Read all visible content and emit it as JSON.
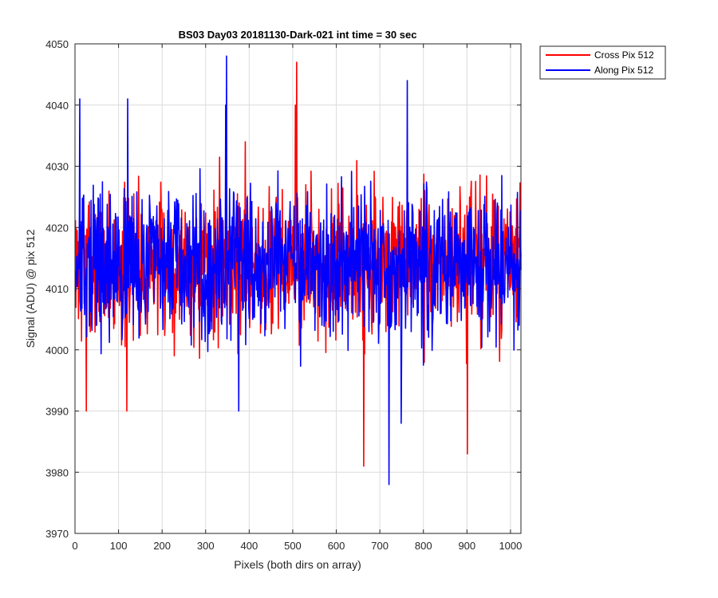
{
  "chart_data": {
    "type": "line",
    "title": "BS03 Day03 20181130-Dark-021 int time = 30 sec",
    "xlabel": "Pixels (both dirs on array)",
    "ylabel": "Signal (ADU) @ pix 512",
    "xlim": [
      0,
      1024
    ],
    "ylim": [
      3970,
      4050
    ],
    "xticks": [
      0,
      100,
      200,
      300,
      400,
      500,
      600,
      700,
      800,
      900,
      1000
    ],
    "yticks": [
      3970,
      3980,
      3990,
      4000,
      4010,
      4020,
      4030,
      4040,
      4050
    ],
    "grid": true,
    "legend_position": "outside-top-right",
    "noise": {
      "mean": 4014,
      "stddev": 6
    },
    "series": [
      {
        "name": "Cross Pix 512",
        "color": "#ff0000",
        "seed": 7,
        "extremes": [
          [
            508,
            4047
          ],
          [
            662,
            3981
          ],
          [
            900,
            3983
          ],
          [
            118,
            3990
          ],
          [
            25,
            3990
          ],
          [
            505,
            4040
          ],
          [
            390,
            4034
          ]
        ]
      },
      {
        "name": "Along Pix 512",
        "color": "#0000ff",
        "seed": 13,
        "extremes": [
          [
            347,
            4048
          ],
          [
            720,
            3978
          ],
          [
            762,
            4044
          ],
          [
            10,
            4041
          ],
          [
            120,
            4041
          ],
          [
            375,
            3990
          ],
          [
            748,
            3988
          ],
          [
            345,
            4040
          ]
        ]
      }
    ]
  }
}
